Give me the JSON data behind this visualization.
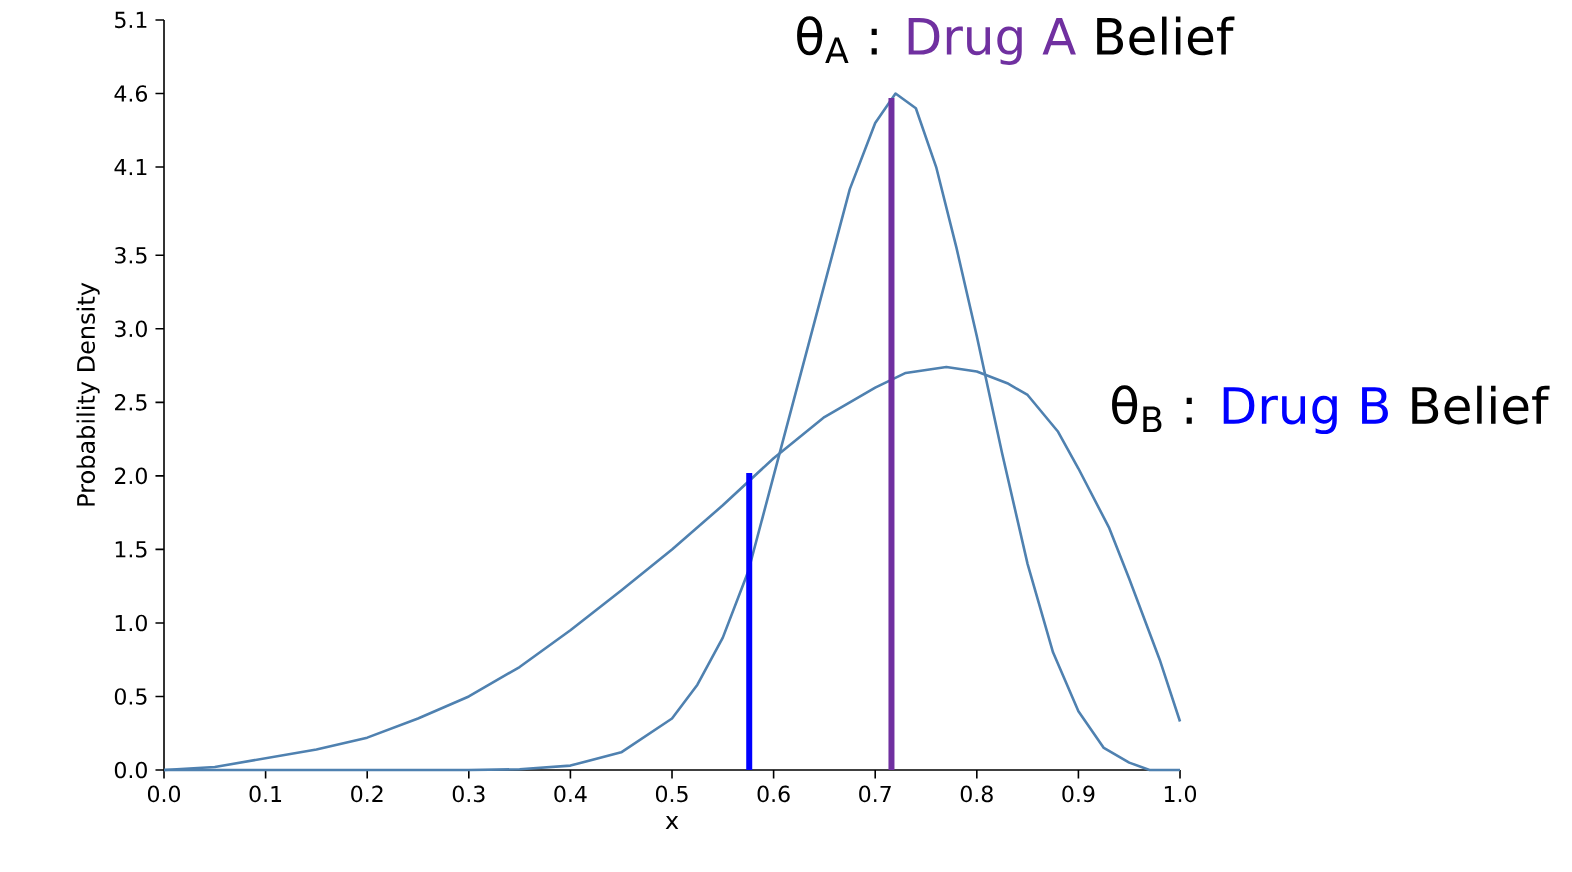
{
  "chart_data": {
    "type": "line",
    "xlabel": "x",
    "ylabel": "Probability Density",
    "xlim": [
      0,
      1
    ],
    "ylim": [
      0,
      5.1
    ],
    "xticks": [
      {
        "value": 0,
        "label": "0.0"
      },
      0.1,
      0.2,
      0.3,
      0.4,
      0.5,
      0.6,
      0.7,
      0.8,
      0.9,
      {
        "value": 1,
        "label": "1.0"
      }
    ],
    "yticks": [
      {
        "value": 0,
        "label": "0.0"
      },
      0.5,
      {
        "value": 1,
        "label": "1.0"
      },
      1.5,
      {
        "value": 2,
        "label": "2.0"
      },
      2.5,
      {
        "value": 3,
        "label": "3.0"
      },
      3.5,
      4.1,
      4.6,
      5.1
    ],
    "grid": false,
    "marker": "none",
    "line_style": "solid",
    "annotations": [
      "θ$_{A}$ :",
      "Belief",
      "θ$_{B}$ :",
      "Belief"
    ],
    "series": [
      {
        "color": "#4f81b0",
        "x": [
          0,
          0.05,
          0.1,
          0.15,
          0.2,
          0.25,
          0.3,
          0.35,
          0.4,
          0.45,
          0.5,
          0.55,
          0.6,
          0.65,
          0.7,
          0.73,
          0.77,
          0.8,
          0.83,
          0.85,
          0.88,
          0.9,
          0.93,
          0.95,
          0.98,
          1.0
        ],
        "values": [
          0,
          0.02,
          0.08,
          0.14,
          0.22,
          0.35,
          0.5,
          0.7,
          0.95,
          1.22,
          1.5,
          1.8,
          2.12,
          2.4,
          2.6,
          2.7,
          2.74,
          2.71,
          2.63,
          2.55,
          2.3,
          2.05,
          1.65,
          1.3,
          0.75,
          0.33
        ]
      },
      {
        "color": "#4f81b0",
        "x": [
          0,
          0.3,
          0.35,
          0.4,
          0.45,
          0.5,
          0.525,
          0.55,
          0.575,
          0.6,
          0.625,
          0.65,
          0.675,
          0.7,
          0.72,
          0.74,
          0.76,
          0.78,
          0.8,
          0.825,
          0.85,
          0.875,
          0.9,
          0.925,
          0.95,
          0.97,
          1.0
        ],
        "values": [
          0,
          0,
          0.005,
          0.03,
          0.12,
          0.35,
          0.58,
          0.9,
          1.35,
          2.0,
          2.65,
          3.3,
          3.95,
          4.4,
          4.6,
          4.5,
          4.1,
          3.55,
          2.95,
          2.15,
          1.4,
          0.8,
          0.4,
          0.15,
          0.05,
          0,
          0
        ]
      },
      {
        "name": "Drug A",
        "color": "#7030a0",
        "x": [
          0.716,
          0.716
        ],
        "values": [
          0,
          4.57
        ]
      },
      {
        "name": "Drug B",
        "color": "#0000ff",
        "x": [
          0.576,
          0.576
        ],
        "values": [
          0,
          2.02
        ]
      }
    ]
  }
}
